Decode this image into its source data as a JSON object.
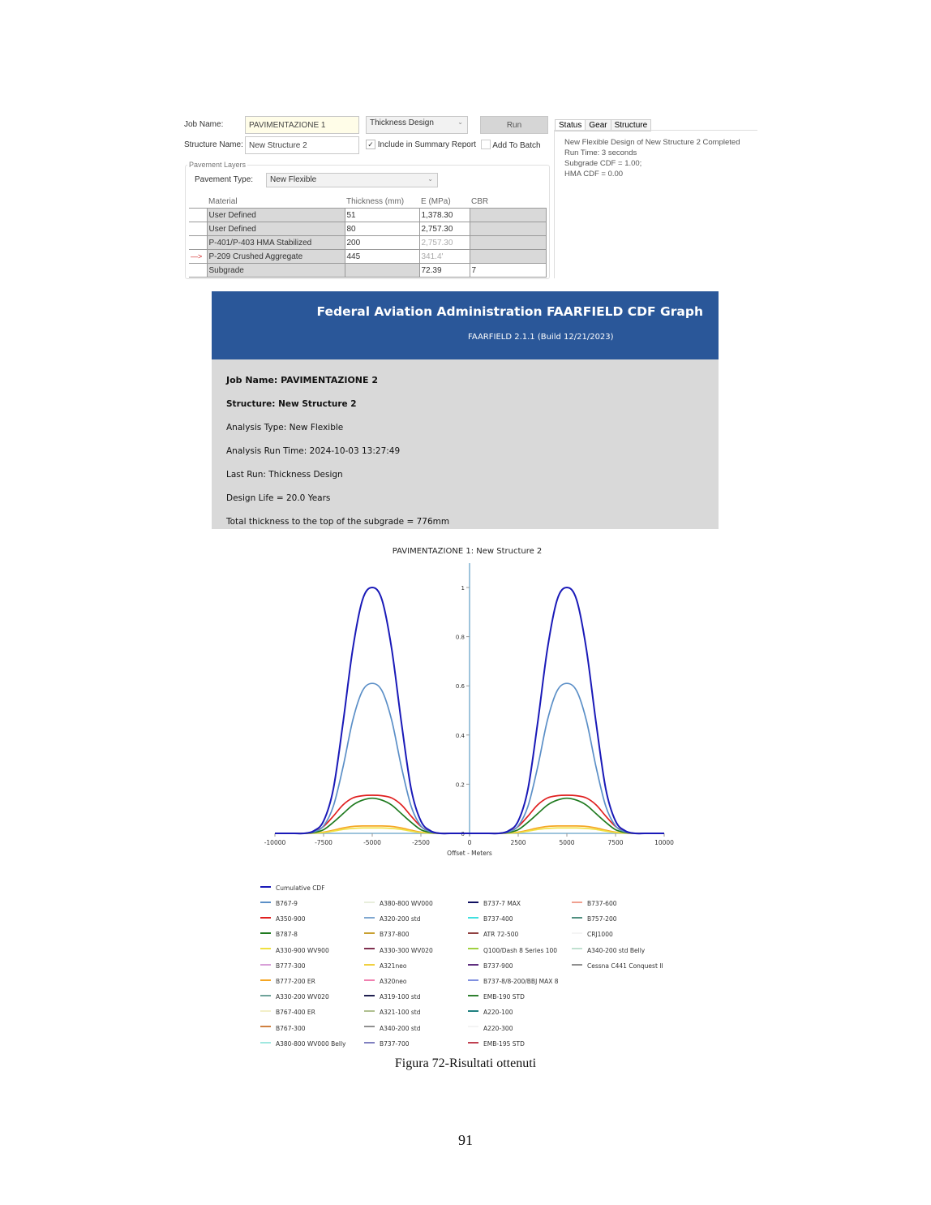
{
  "app": {
    "job_name_label": "Job Name:",
    "job_name_value": "PAVIMENTAZIONE 1",
    "structure_name_label": "Structure Name:",
    "structure_name_value": "New Structure 2",
    "mode_select": "Thickness Design",
    "run_button": "Run",
    "include_summary_label": "Include in Summary Report",
    "include_summary_checked": true,
    "add_batch_label": "Add To Batch",
    "add_batch_checked": false,
    "group_label": "Pavement Layers",
    "pavement_type_label": "Pavement Type:",
    "pavement_type_value": "New Flexible",
    "table": {
      "headers": [
        "Material",
        "Thickness (mm)",
        "E (MPa)",
        "CBR"
      ],
      "rows": [
        {
          "material": "User Defined",
          "thickness": "51",
          "e": "1,378.30",
          "cbr": "",
          "marker": ""
        },
        {
          "material": "User Defined",
          "thickness": "80",
          "e": "2,757.30",
          "cbr": "",
          "marker": ""
        },
        {
          "material": "P-401/P-403 HMA Stabilized",
          "thickness": "200",
          "e": "2,757.30",
          "cbr": "",
          "marker": ""
        },
        {
          "material": "P-209 Crushed Aggregate",
          "thickness": "445",
          "e": "341.4'",
          "cbr": "",
          "marker": "—>"
        },
        {
          "material": "Subgrade",
          "thickness": "",
          "e": "72.39",
          "cbr": "7",
          "marker": ""
        }
      ]
    },
    "tabs": [
      "Status",
      "Gear",
      "Structure"
    ],
    "status_lines": [
      "New Flexible Design of New Structure 2 Completed",
      "Run Time: 3 seconds",
      "Subgrade CDF = 1.00;",
      "HMA CDF  = 0.00"
    ]
  },
  "report": {
    "title": "Federal Aviation Administration FAARFIELD CDF Graph",
    "subtitle": "FAARFIELD 2.1.1 (Build 12/21/2023)",
    "job_name": "Job Name: PAVIMENTAZIONE 2",
    "structure": "Structure: New Structure 2",
    "analysis_type": "Analysis Type: New Flexible",
    "run_time": "Analysis Run Time: 2024-10-03 13:27:49",
    "last_run": "Last Run: Thickness Design",
    "design_life": "Design Life = 20.0 Years",
    "total_thickness": "Total thickness to the top of the subgrade = 776mm",
    "header_color": "#2a5799"
  },
  "chart_data": {
    "type": "line",
    "title": "PAVIMENTAZIONE 1: New Structure 2",
    "xlabel": "Offset - Meters",
    "ylabel": "",
    "xlim": [
      -10000,
      10000
    ],
    "ylim": [
      0,
      1
    ],
    "xticks": [
      "-10000",
      "-7500",
      "-5000",
      "-2500",
      "0",
      "2500",
      "5000",
      "7500",
      "10000"
    ],
    "yticks": [
      "0",
      "0.2",
      "0.4",
      "0.6",
      "0.8",
      "1"
    ],
    "grid": false,
    "legend_position": "bottom",
    "x": [
      -10000,
      -9500,
      -9000,
      -8500,
      -8000,
      -7500,
      -7000,
      -6500,
      -6000,
      -5500,
      -5000,
      -4500,
      -4000,
      -3500,
      -3000,
      -2500,
      -2000,
      -1500,
      -1000,
      -500,
      0,
      500,
      1000,
      1500,
      2000,
      2500,
      3000,
      3500,
      4000,
      4500,
      5000,
      5500,
      6000,
      6500,
      7000,
      7500,
      8000,
      8500,
      9000,
      9500,
      10000
    ],
    "series": [
      {
        "name": "B777-200 ER",
        "color": "#f5a623",
        "values": [
          0,
          0,
          0,
          0,
          0.001,
          0.005,
          0.013,
          0.022,
          0.028,
          0.03,
          0.03,
          0.03,
          0.028,
          0.022,
          0.013,
          0.005,
          0.001,
          0,
          0,
          0,
          0,
          0,
          0,
          0,
          0.001,
          0.005,
          0.013,
          0.022,
          0.028,
          0.03,
          0.03,
          0.03,
          0.028,
          0.022,
          0.013,
          0.005,
          0.001,
          0,
          0,
          0,
          0
        ]
      },
      {
        "name": "A330-900 WV900",
        "color": "#f0e040",
        "values": [
          0,
          0,
          0,
          0,
          0.001,
          0.003,
          0.009,
          0.016,
          0.02,
          0.022,
          0.022,
          0.022,
          0.02,
          0.016,
          0.009,
          0.003,
          0.001,
          0,
          0,
          0,
          0,
          0,
          0,
          0,
          0.001,
          0.003,
          0.009,
          0.016,
          0.02,
          0.022,
          0.022,
          0.022,
          0.02,
          0.016,
          0.009,
          0.003,
          0.001,
          0,
          0,
          0,
          0
        ]
      },
      {
        "name": "B787-8",
        "color": "#1f7a1f",
        "values": [
          0,
          0,
          0,
          0,
          0.003,
          0.015,
          0.045,
          0.08,
          0.115,
          0.135,
          0.143,
          0.135,
          0.115,
          0.08,
          0.045,
          0.015,
          0.003,
          0,
          0,
          0,
          0,
          0,
          0,
          0,
          0.003,
          0.015,
          0.045,
          0.08,
          0.115,
          0.135,
          0.143,
          0.135,
          0.115,
          0.08,
          0.045,
          0.015,
          0.003,
          0,
          0,
          0,
          0
        ]
      },
      {
        "name": "A350-900",
        "color": "#e02020",
        "values": [
          0,
          0,
          0,
          0,
          0.006,
          0.028,
          0.07,
          0.116,
          0.144,
          0.153,
          0.155,
          0.153,
          0.144,
          0.116,
          0.07,
          0.028,
          0.006,
          0,
          0,
          0,
          0,
          0,
          0,
          0,
          0.006,
          0.028,
          0.07,
          0.116,
          0.144,
          0.153,
          0.155,
          0.153,
          0.144,
          0.116,
          0.07,
          0.028,
          0.006,
          0,
          0,
          0,
          0
        ]
      },
      {
        "name": "B767-9",
        "color": "#5b8fc7",
        "values": [
          0,
          0,
          0,
          0,
          0.006,
          0.03,
          0.11,
          0.27,
          0.46,
          0.58,
          0.61,
          0.58,
          0.46,
          0.27,
          0.11,
          0.03,
          0.006,
          0,
          0,
          0,
          0,
          0,
          0,
          0,
          0.006,
          0.03,
          0.11,
          0.27,
          0.46,
          0.58,
          0.61,
          0.58,
          0.46,
          0.27,
          0.11,
          0.03,
          0.006,
          0,
          0,
          0,
          0
        ]
      },
      {
        "name": "Cumulative CDF",
        "color": "#1a1ab8",
        "values": [
          0,
          0,
          0,
          0,
          0.01,
          0.05,
          0.18,
          0.45,
          0.75,
          0.95,
          1,
          0.95,
          0.75,
          0.45,
          0.18,
          0.05,
          0.01,
          0,
          0,
          0,
          0,
          0,
          0,
          0,
          0.01,
          0.05,
          0.18,
          0.45,
          0.75,
          0.95,
          1,
          0.95,
          0.75,
          0.45,
          0.18,
          0.05,
          0.01,
          0,
          0,
          0,
          0
        ]
      }
    ],
    "legend_first": {
      "name": "Cumulative CDF",
      "color": "#1a1ab8"
    },
    "legend_columns": [
      [
        {
          "name": "B767-9",
          "color": "#5b8fc7"
        },
        {
          "name": "A350-900",
          "color": "#e02020"
        },
        {
          "name": "B787-8",
          "color": "#1f7a1f"
        },
        {
          "name": "A330-900 WV900",
          "color": "#f0e040"
        },
        {
          "name": "B777-300",
          "color": "#d8a0d8"
        },
        {
          "name": "B777-200 ER",
          "color": "#f5a623"
        },
        {
          "name": "A330-200 WV020",
          "color": "#6fa39a"
        },
        {
          "name": "B767-400 ER",
          "color": "#f3efc8"
        },
        {
          "name": "B767-300",
          "color": "#d08040"
        },
        {
          "name": "A380-800 WV000 Belly",
          "color": "#a0e8e0"
        }
      ],
      [
        {
          "name": "A380-800 WV000",
          "color": "#e8eedc"
        },
        {
          "name": "A320-200 std",
          "color": "#7fa7d0"
        },
        {
          "name": "B737-800",
          "color": "#c8a030"
        },
        {
          "name": "A330-300 WV020",
          "color": "#803050"
        },
        {
          "name": "A321neo",
          "color": "#f0d040"
        },
        {
          "name": "A320neo",
          "color": "#f080b0"
        },
        {
          "name": "A319-100 std",
          "color": "#202050"
        },
        {
          "name": "A321-100 std",
          "color": "#b0c090"
        },
        {
          "name": "A340-200 std",
          "color": "#909090"
        },
        {
          "name": "B737-700",
          "color": "#8080c0"
        }
      ],
      [
        {
          "name": "B737-7 MAX",
          "color": "#101060"
        },
        {
          "name": "B737-400",
          "color": "#40e0e0"
        },
        {
          "name": "ATR 72-500",
          "color": "#904040"
        },
        {
          "name": "Q100/Dash 8 Series 100",
          "color": "#a0d040"
        },
        {
          "name": "B737-900",
          "color": "#603080"
        },
        {
          "name": "B737-8/8-200/BBJ MAX 8",
          "color": "#8090e0"
        },
        {
          "name": "EMB-190 STD",
          "color": "#308030"
        },
        {
          "name": "A220-100",
          "color": "#208080"
        },
        {
          "name": "A220-300",
          "color": "#f4f4f4"
        },
        {
          "name": "EMB-195 STD",
          "color": "#c04050"
        }
      ],
      [
        {
          "name": "B737-600",
          "color": "#f0a090"
        },
        {
          "name": "B757-200",
          "color": "#509080"
        },
        {
          "name": "CRJ1000",
          "color": "#f4f4f4"
        },
        {
          "name": "A340-200 std Belly",
          "color": "#c0e0d0"
        },
        {
          "name": "Cessna C441 Conquest II",
          "color": "#909090"
        }
      ]
    ]
  },
  "caption": "Figura 72-Risultati ottenuti",
  "page_number": "91"
}
